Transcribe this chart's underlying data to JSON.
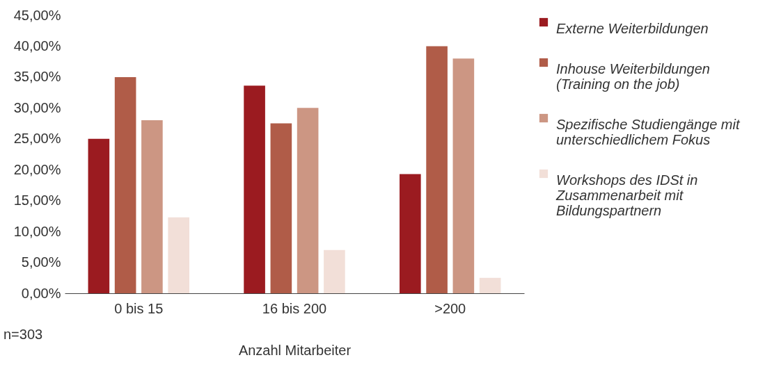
{
  "chart_data": {
    "type": "bar",
    "xlabel": "Anzahl Mitarbeiter",
    "categories": [
      "0 bis 15",
      "16 bis 200",
      ">200"
    ],
    "series": [
      {
        "name": "Externe Weiterbildungen",
        "color": "#9b1b20",
        "values": [
          25,
          33.6,
          19.3
        ]
      },
      {
        "name": "Inhouse Weiterbildungen (Training on the job)",
        "color": "#b05c48",
        "values": [
          35,
          27.5,
          40
        ]
      },
      {
        "name": "Spezifische Studiengänge mit unterschiedlichem Fokus",
        "color": "#cc9683",
        "values": [
          28,
          30,
          38
        ]
      },
      {
        "name": "Workshops des IDSt in Zusammenarbeit mit Bildungspartnern",
        "color": "#f2dfd8",
        "values": [
          12.3,
          7,
          2.5
        ]
      }
    ],
    "ylim": [
      0,
      45
    ],
    "yticks": [
      {
        "value": 0,
        "label": "0,00%"
      },
      {
        "value": 5,
        "label": "5,00%"
      },
      {
        "value": 10,
        "label": "10,00%"
      },
      {
        "value": 15,
        "label": "15,00%"
      },
      {
        "value": 20,
        "label": "20,00%"
      },
      {
        "value": 25,
        "label": "25,00%"
      },
      {
        "value": 30,
        "label": "30,00%"
      },
      {
        "value": 35,
        "label": "35,00%"
      },
      {
        "value": 40,
        "label": "40,00%"
      },
      {
        "value": 45,
        "label": "45,00%"
      }
    ],
    "annotations": [
      "n=303"
    ],
    "grid": false,
    "legend": "top right"
  }
}
